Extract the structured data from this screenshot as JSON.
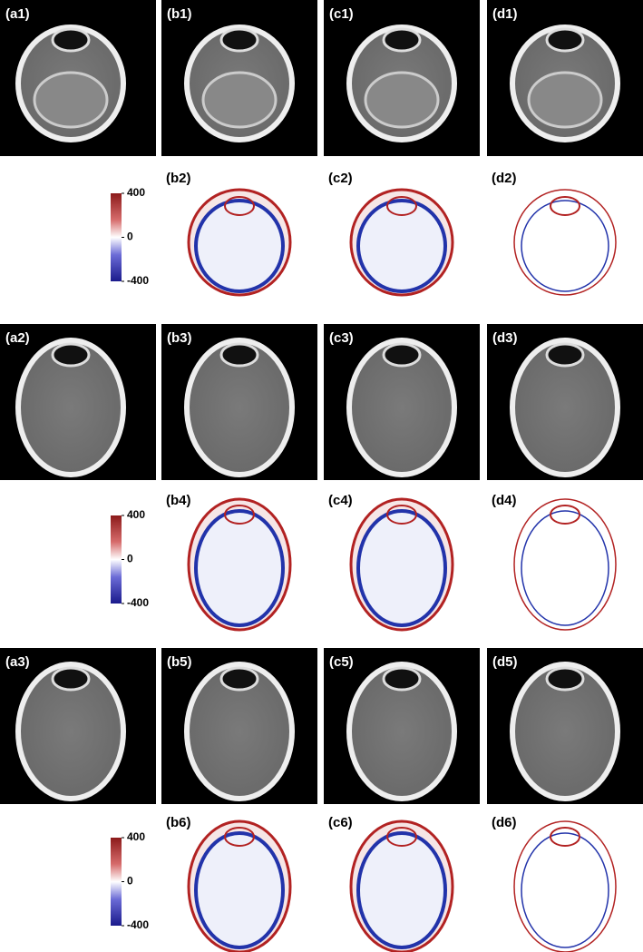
{
  "rows": [
    {
      "images": [
        "(a1)",
        "(b1)",
        "(c1)",
        "(d1)"
      ],
      "diffs": [
        "(b2)",
        "(c2)",
        "(d2)"
      ]
    },
    {
      "images": [
        "(a2)",
        "(b3)",
        "(c3)",
        "(d3)"
      ],
      "diffs": [
        "(b4)",
        "(c4)",
        "(d4)"
      ]
    },
    {
      "images": [
        "(a3)",
        "(b5)",
        "(c5)",
        "(d5)"
      ],
      "diffs": [
        "(b6)",
        "(c6)",
        "(d6)"
      ]
    }
  ],
  "colorbar": {
    "lim": [
      -400,
      400
    ],
    "ticks": [
      400,
      0,
      -400
    ]
  }
}
